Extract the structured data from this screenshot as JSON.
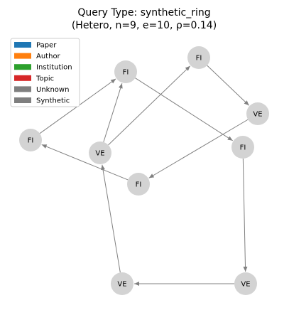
{
  "title": {
    "line1": "Query Type: synthetic_ring",
    "line2": "(Hetero, n=9, e=10, ρ=0.14)"
  },
  "legend": [
    {
      "label": "Paper",
      "color": "#1f77b4"
    },
    {
      "label": "Author",
      "color": "#ff7f0e"
    },
    {
      "label": "Institution",
      "color": "#2ca02c"
    },
    {
      "label": "Topic",
      "color": "#d62728"
    },
    {
      "label": "Unknown",
      "color": "#7f7f7f"
    },
    {
      "label": "Synthetic",
      "color": "#7f7f7f"
    }
  ],
  "colors": {
    "node_fill": "#d3d3d3",
    "edge": "#808080"
  },
  "graph": {
    "nodes": [
      {
        "id": "n1",
        "label": "FI"
      },
      {
        "id": "n2",
        "label": "FI"
      },
      {
        "id": "n3",
        "label": "FI"
      },
      {
        "id": "n4",
        "label": "VE"
      },
      {
        "id": "n5",
        "label": "VE"
      },
      {
        "id": "n6",
        "label": "FI"
      },
      {
        "id": "n7",
        "label": "FI"
      },
      {
        "id": "n8",
        "label": "VE"
      },
      {
        "id": "n9",
        "label": "VE"
      }
    ],
    "edges": [
      {
        "from": "n1",
        "to": "n2"
      },
      {
        "from": "n2",
        "to": "n6"
      },
      {
        "from": "n3",
        "to": "n4"
      },
      {
        "from": "n4",
        "to": "n7"
      },
      {
        "from": "n5",
        "to": "n2"
      },
      {
        "from": "n5",
        "to": "n3"
      },
      {
        "from": "n6",
        "to": "n9"
      },
      {
        "from": "n7",
        "to": "n1"
      },
      {
        "from": "n9",
        "to": "n8"
      },
      {
        "from": "n8",
        "to": "n5"
      }
    ]
  }
}
